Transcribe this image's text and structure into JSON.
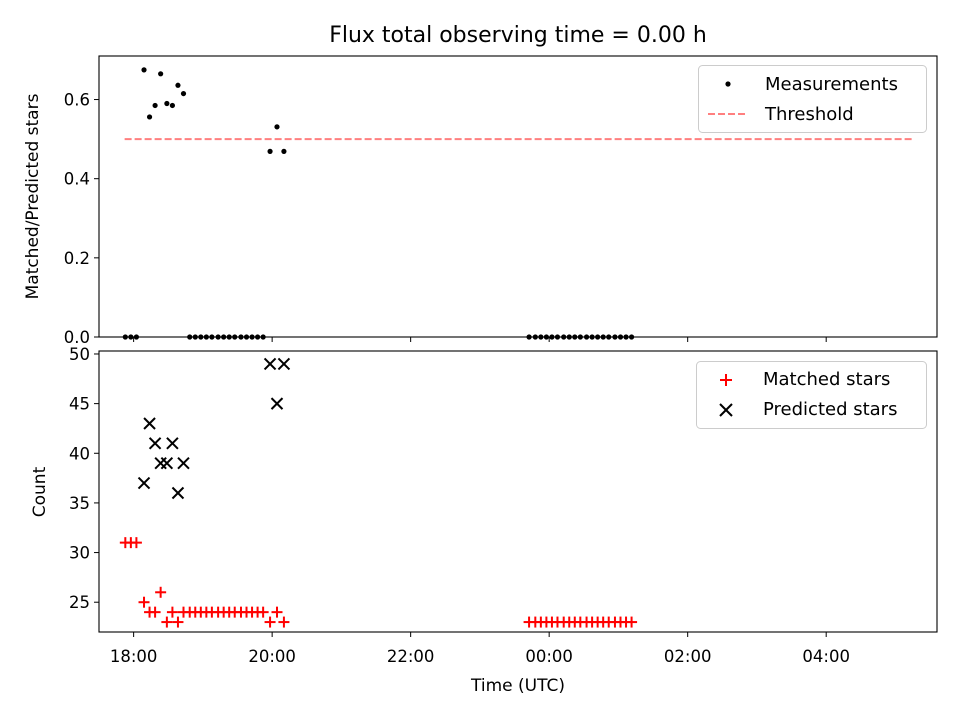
{
  "chart_data": [
    {
      "type": "scatter",
      "title": "Flux total observing time = 0.00 h",
      "ylabel": "Matched/Predicted stars",
      "xlim": [
        17.5,
        29.6
      ],
      "ylim": [
        0.0,
        0.71
      ],
      "yticks": [
        0.0,
        0.2,
        0.4,
        0.6
      ],
      "ytick_labels": [
        "0.0",
        "0.2",
        "0.4",
        "0.6"
      ],
      "legend_position": "upper right",
      "legend": [
        {
          "label": "Measurements",
          "marker": "dot"
        },
        {
          "label": "Threshold",
          "marker": "dashed-line"
        }
      ],
      "threshold": {
        "value": 0.5,
        "x_start": 17.87,
        "x_end": 29.25,
        "color": "#ff7f7f"
      },
      "series": [
        {
          "name": "Measurements",
          "color": "#000000",
          "x": [
            17.88,
            17.96,
            18.04,
            18.15,
            18.23,
            18.31,
            18.39,
            18.48,
            18.56,
            18.64,
            18.72,
            18.81,
            18.89,
            18.97,
            19.05,
            19.13,
            19.22,
            19.3,
            19.38,
            19.46,
            19.55,
            19.63,
            19.71,
            19.79,
            19.87,
            19.97,
            20.07,
            20.17,
            23.71,
            23.8,
            23.88,
            23.96,
            24.04,
            24.12,
            24.21,
            24.29,
            24.37,
            24.45,
            24.54,
            24.62,
            24.7,
            24.78,
            24.86,
            24.95,
            25.03,
            25.11,
            25.19
          ],
          "y": [
            0.0,
            0.0,
            0.0,
            0.675,
            0.556,
            0.585,
            0.665,
            0.59,
            0.585,
            0.636,
            0.615,
            0.0,
            0.0,
            0.0,
            0.0,
            0.0,
            0.0,
            0.0,
            0.0,
            0.0,
            0.0,
            0.0,
            0.0,
            0.0,
            0.0,
            0.469,
            0.531,
            0.469,
            0.0,
            0.0,
            0.0,
            0.0,
            0.0,
            0.0,
            0.0,
            0.0,
            0.0,
            0.0,
            0.0,
            0.0,
            0.0,
            0.0,
            0.0,
            0.0,
            0.0,
            0.0,
            0.0
          ]
        }
      ]
    },
    {
      "type": "scatter",
      "xlabel": "Time (UTC)",
      "ylabel": "Count",
      "xlim": [
        17.5,
        29.6
      ],
      "ylim": [
        22.0,
        50.3
      ],
      "yticks": [
        25,
        30,
        35,
        40,
        45,
        50
      ],
      "ytick_labels": [
        "25",
        "30",
        "35",
        "40",
        "45",
        "50"
      ],
      "xticks": [
        18,
        20,
        22,
        24,
        26,
        28
      ],
      "xtick_labels": [
        "18:00",
        "20:00",
        "22:00",
        "00:00",
        "02:00",
        "04:00"
      ],
      "legend_position": "upper right",
      "legend": [
        {
          "label": "Matched stars",
          "marker": "plus",
          "color": "#ff0000"
        },
        {
          "label": "Predicted stars",
          "marker": "x",
          "color": "#000000"
        }
      ],
      "series": [
        {
          "name": "Matched stars",
          "color": "#ff0000",
          "x": [
            17.88,
            17.96,
            18.04,
            18.15,
            18.23,
            18.31,
            18.39,
            18.48,
            18.56,
            18.64,
            18.72,
            18.81,
            18.89,
            18.97,
            19.05,
            19.13,
            19.22,
            19.3,
            19.38,
            19.46,
            19.55,
            19.63,
            19.71,
            19.79,
            19.87,
            19.97,
            20.07,
            20.17,
            23.71,
            23.8,
            23.88,
            23.96,
            24.04,
            24.12,
            24.21,
            24.29,
            24.37,
            24.45,
            24.54,
            24.62,
            24.7,
            24.78,
            24.86,
            24.95,
            25.03,
            25.11,
            25.19
          ],
          "y": [
            31,
            31,
            31,
            25,
            24,
            24,
            26,
            23,
            24,
            23,
            24,
            24,
            24,
            24,
            24,
            24,
            24,
            24,
            24,
            24,
            24,
            24,
            24,
            24,
            24,
            23,
            24,
            23,
            23,
            23,
            23,
            23,
            23,
            23,
            23,
            23,
            23,
            23,
            23,
            23,
            23,
            23,
            23,
            23,
            23,
            23,
            23
          ]
        },
        {
          "name": "Predicted stars",
          "color": "#000000",
          "x": [
            18.15,
            18.23,
            18.31,
            18.39,
            18.48,
            18.56,
            18.64,
            18.72,
            19.97,
            20.07,
            20.17
          ],
          "y": [
            37,
            43,
            41,
            39,
            39,
            41,
            36,
            39,
            49,
            45,
            49
          ]
        }
      ]
    }
  ]
}
